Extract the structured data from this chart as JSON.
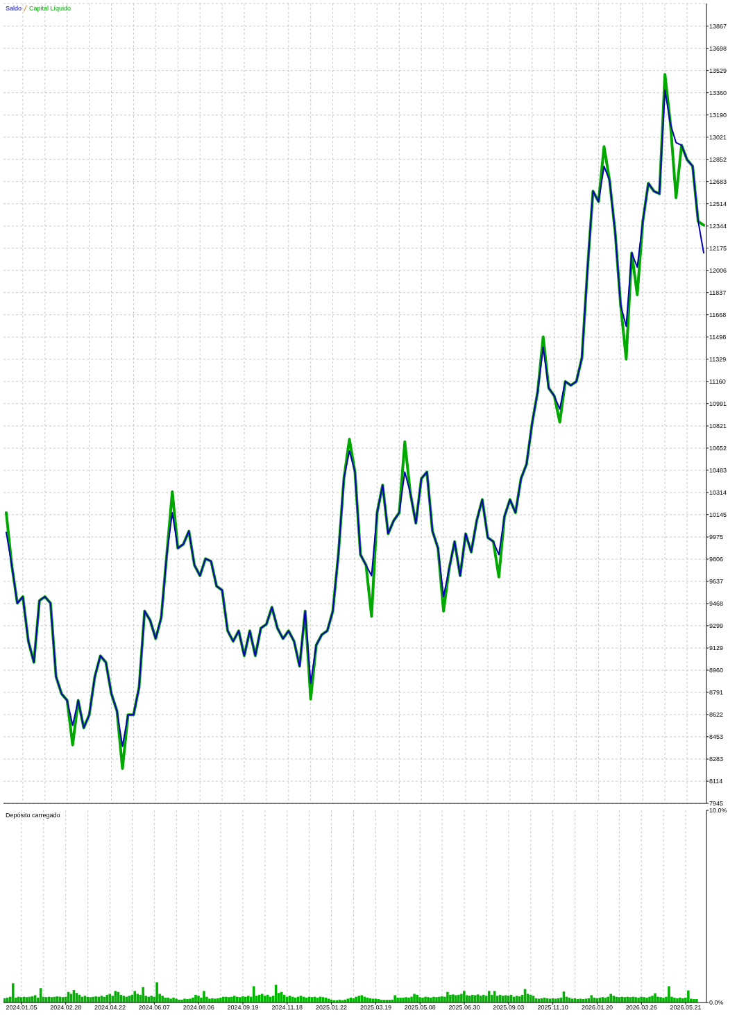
{
  "chart_data": [
    {
      "type": "line",
      "legend": "top left",
      "tick_labels": "y",
      "grid": true,
      "ylim": [
        7945,
        14040
      ],
      "yticks": [
        7945,
        8114,
        8283,
        8453,
        8622,
        8791,
        8960,
        9129,
        9299,
        9468,
        9637,
        9806,
        9975,
        10145,
        10314,
        10483,
        10652,
        10821,
        10991,
        11160,
        11329,
        11498,
        11668,
        11837,
        12006,
        12175,
        12344,
        12514,
        12683,
        12852,
        13021,
        13190,
        13360,
        13529,
        13698,
        13867
      ],
      "categories": [
        null,
        null,
        null,
        "2024.01.05",
        null,
        null,
        null,
        null,
        null,
        null,
        null,
        "2024.02.28",
        null,
        null,
        null,
        null,
        null,
        null,
        null,
        "2024.04.22",
        null,
        null,
        null,
        null,
        null,
        null,
        null,
        "2024.06.07",
        null,
        null,
        null,
        null,
        null,
        null,
        null,
        "2024.08.06",
        null,
        null,
        null,
        null,
        null,
        null,
        null,
        "2024.09.19",
        null,
        null,
        null,
        null,
        null,
        null,
        null,
        "2024.11.18",
        null,
        null,
        null,
        null,
        null,
        null,
        null,
        "2025.01.22",
        null,
        null,
        null,
        null,
        null,
        null,
        null,
        "2025.03.19",
        null,
        null,
        null,
        null,
        null,
        null,
        null,
        "2025.05.08",
        null,
        null,
        null,
        null,
        null,
        null,
        null,
        "2025.06.30",
        null,
        null,
        null,
        null,
        null,
        null,
        null,
        "2025.09.03",
        null,
        null,
        null,
        null,
        null,
        null,
        null,
        "2025.11.10",
        null,
        null,
        null,
        null,
        null,
        null,
        null,
        "2026.01.20",
        null,
        null,
        null,
        null,
        null,
        null,
        null,
        "2026.03.26",
        null,
        null,
        null,
        null,
        null,
        null,
        null,
        "2026.05.21",
        null,
        null,
        null
      ],
      "series": [
        {
          "name": "Saldo",
          "color": "#0000b4",
          "values": [
            10010,
            9760,
            9470,
            9520,
            9180,
            9020,
            9490,
            9520,
            9470,
            8910,
            8780,
            8730,
            8540,
            8730,
            8520,
            8620,
            8910,
            9070,
            9020,
            8780,
            8650,
            8380,
            8620,
            8620,
            8830,
            9410,
            9340,
            9200,
            9360,
            9840,
            10160,
            9890,
            9920,
            10020,
            9760,
            9680,
            9810,
            9790,
            9600,
            9570,
            9260,
            9180,
            9260,
            9070,
            9260,
            9070,
            9280,
            9310,
            9440,
            9280,
            9200,
            9260,
            9180,
            8990,
            9410,
            8860,
            9150,
            9230,
            9260,
            9410,
            9840,
            10420,
            10630,
            10470,
            9840,
            9760,
            9680,
            10160,
            10370,
            10000,
            10100,
            10160,
            10470,
            10310,
            10080,
            10420,
            10470,
            10020,
            9890,
            9520,
            9730,
            9940,
            9680,
            10000,
            9860,
            10100,
            10260,
            9970,
            9940,
            9840,
            10130,
            10260,
            10160,
            10420,
            10530,
            10840,
            11080,
            11420,
            11110,
            11050,
            10950,
            11160,
            11130,
            11160,
            11340,
            12010,
            12610,
            12530,
            12800,
            12690,
            12300,
            11740,
            11580,
            12140,
            12030,
            12380,
            12670,
            12610,
            12590,
            13380,
            13120,
            12980,
            12960,
            12850,
            12800,
            12380,
            12140
          ]
        },
        {
          "name": "Capital Líquido",
          "color": "#00a800",
          "values": [
            10160,
            9760,
            9470,
            9520,
            9180,
            9020,
            9490,
            9520,
            9470,
            8910,
            8780,
            8730,
            8390,
            8730,
            8520,
            8620,
            8910,
            9070,
            9020,
            8780,
            8650,
            8210,
            8620,
            8620,
            8830,
            9410,
            9340,
            9200,
            9360,
            9840,
            10320,
            9890,
            9920,
            10020,
            9760,
            9680,
            9810,
            9790,
            9600,
            9570,
            9260,
            9180,
            9260,
            9070,
            9260,
            9070,
            9280,
            9310,
            9440,
            9280,
            9200,
            9260,
            9180,
            8990,
            9410,
            8740,
            9150,
            9230,
            9260,
            9410,
            9840,
            10420,
            10720,
            10470,
            9840,
            9760,
            9370,
            10160,
            10370,
            10000,
            10100,
            10160,
            10700,
            10310,
            10080,
            10420,
            10470,
            10020,
            9890,
            9410,
            9730,
            9940,
            9680,
            10000,
            9860,
            10100,
            10260,
            9970,
            9940,
            9670,
            10130,
            10260,
            10160,
            10420,
            10530,
            10840,
            11080,
            11500,
            11110,
            11050,
            10850,
            11160,
            11130,
            11160,
            11340,
            12010,
            12610,
            12530,
            12950,
            12690,
            12300,
            11740,
            11330,
            12140,
            11820,
            12380,
            12670,
            12610,
            12590,
            13500,
            13120,
            12560,
            12960,
            12850,
            12800,
            12380,
            12350
          ]
        }
      ]
    },
    {
      "type": "bar",
      "title": "Depósito carregado",
      "grid": "x",
      "ylim": [
        0,
        10
      ],
      "yticks": [
        {
          "value": 0,
          "label": "0.0%"
        },
        {
          "value": 10,
          "label": "10.0%"
        }
      ],
      "categories": [
        null,
        null,
        null,
        null,
        null,
        null,
        "2024.01.05",
        null,
        null,
        null,
        null,
        null,
        null,
        null,
        null,
        null,
        null,
        null,
        null,
        null,
        null,
        null,
        "2024.02.28",
        null,
        null,
        null,
        null,
        null,
        null,
        null,
        null,
        null,
        null,
        null,
        null,
        null,
        null,
        null,
        "2024.04.22",
        null,
        null,
        null,
        null,
        null,
        null,
        null,
        null,
        null,
        null,
        null,
        null,
        null,
        null,
        null,
        "2024.06.07",
        null,
        null,
        null,
        null,
        null,
        null,
        null,
        null,
        null,
        null,
        null,
        null,
        null,
        null,
        null,
        "2024.08.06",
        null,
        null,
        null,
        null,
        null,
        null,
        null,
        null,
        null,
        null,
        null,
        null,
        null,
        null,
        null,
        "2024.09.19",
        null,
        null,
        null,
        null,
        null,
        null,
        null,
        null,
        null,
        null,
        null,
        null,
        null,
        null,
        null,
        "2024.11.18",
        null,
        null,
        null,
        null,
        null,
        null,
        null,
        null,
        null,
        null,
        null,
        null,
        null,
        null,
        null,
        "2025.01.22",
        null,
        null,
        null,
        null,
        null,
        null,
        null,
        null,
        null,
        null,
        null,
        null,
        null,
        null,
        null,
        "2025.03.19",
        null,
        null,
        null,
        null,
        null,
        null,
        null,
        null,
        null,
        null,
        null,
        null,
        null,
        null,
        null,
        "2025.05.08",
        null,
        null,
        null,
        null,
        null,
        null,
        null,
        null,
        null,
        null,
        null,
        null,
        null,
        null,
        null,
        "2025.06.30",
        null,
        null,
        null,
        null,
        null,
        null,
        null,
        null,
        null,
        null,
        null,
        null,
        null,
        null,
        null,
        "2025.09.03",
        null,
        null,
        null,
        null,
        null,
        null,
        null,
        null,
        null,
        null,
        null,
        null,
        null,
        null,
        null,
        "2025.11.10",
        null,
        null,
        null,
        null,
        null,
        null,
        null,
        null,
        null,
        null,
        null,
        null,
        null,
        null,
        null,
        "2026.01.20",
        null,
        null,
        null,
        null,
        null,
        null,
        null,
        null,
        null,
        null,
        null,
        null,
        null,
        null,
        null,
        "2026.03.26",
        null,
        null,
        null,
        null,
        null,
        null,
        null,
        null,
        null,
        null,
        null,
        null,
        null,
        null,
        null,
        "2026.05.21",
        null,
        null,
        null,
        null,
        null,
        null,
        null
      ],
      "color": "#00b400",
      "values": [
        0.22,
        0.25,
        0.3,
        1.0,
        0.25,
        0.3,
        0.28,
        0.3,
        0.28,
        0.3,
        0.32,
        0.38,
        0.25,
        0.75,
        0.3,
        0.28,
        0.3,
        0.28,
        0.3,
        0.32,
        0.3,
        0.28,
        0.3,
        0.55,
        0.45,
        0.65,
        0.5,
        0.4,
        0.3,
        0.35,
        0.3,
        0.28,
        0.3,
        0.32,
        0.3,
        0.35,
        0.3,
        0.4,
        0.45,
        0.35,
        0.6,
        0.55,
        0.4,
        0.35,
        0.3,
        0.35,
        0.4,
        0.6,
        0.45,
        0.4,
        0.8,
        0.35,
        0.3,
        0.35,
        0.3,
        1.05,
        0.45,
        0.35,
        0.25,
        0.25,
        0.2,
        0.25,
        0.2,
        0.15,
        0.15,
        0.2,
        0.18,
        0.2,
        0.25,
        0.4,
        0.35,
        0.25,
        0.6,
        0.3,
        0.2,
        0.22,
        0.2,
        0.22,
        0.25,
        0.3,
        0.3,
        0.28,
        0.3,
        0.35,
        0.3,
        0.28,
        0.32,
        0.3,
        0.35,
        0.3,
        0.85,
        0.35,
        0.4,
        0.45,
        0.35,
        0.4,
        0.3,
        0.35,
        0.92,
        0.5,
        0.55,
        0.4,
        0.3,
        0.35,
        0.3,
        0.25,
        0.3,
        0.35,
        0.3,
        0.25,
        0.3,
        0.28,
        0.3,
        0.25,
        0.3,
        0.28,
        0.25,
        0.2,
        0.15,
        0.12,
        0.12,
        0.15,
        0.12,
        0.15,
        0.2,
        0.25,
        0.22,
        0.3,
        0.35,
        0.38,
        0.3,
        0.25,
        0.22,
        0.2,
        0.2,
        0.18,
        0.14,
        0.14,
        0.14,
        0.14,
        0.15,
        0.38,
        0.25,
        0.25,
        0.25,
        0.28,
        0.25,
        0.3,
        0.45,
        0.4,
        0.28,
        0.25,
        0.3,
        0.28,
        0.25,
        0.3,
        0.28,
        0.3,
        0.32,
        0.3,
        0.55,
        0.4,
        0.42,
        0.38,
        0.4,
        0.45,
        0.6,
        0.38,
        0.35,
        0.4,
        0.38,
        0.42,
        0.35,
        0.4,
        0.35,
        0.6,
        0.4,
        0.6,
        0.35,
        0.4,
        0.35,
        0.38,
        0.35,
        0.4,
        0.3,
        0.35,
        0.32,
        0.4,
        0.7,
        0.45,
        0.4,
        0.35,
        0.22,
        0.2,
        0.22,
        0.25,
        0.22,
        0.2,
        0.22,
        0.2,
        0.22,
        0.25,
        0.57,
        0.3,
        0.25,
        0.2,
        0.22,
        0.18,
        0.2,
        0.18,
        0.2,
        0.22,
        0.38,
        0.25,
        0.22,
        0.25,
        0.28,
        0.25,
        0.3,
        0.45,
        0.35,
        0.3,
        0.28,
        0.3,
        0.28,
        0.3,
        0.28,
        0.3,
        0.28,
        0.25,
        0.3,
        0.28,
        0.25,
        0.3,
        0.35,
        0.48,
        0.3,
        0.28,
        0.25,
        0.3,
        0.85,
        0.3,
        0.25,
        0.22,
        0.25,
        0.22,
        0.25,
        0.63,
        0.2,
        0.18,
        0.18,
        null,
        null,
        null
      ]
    }
  ]
}
